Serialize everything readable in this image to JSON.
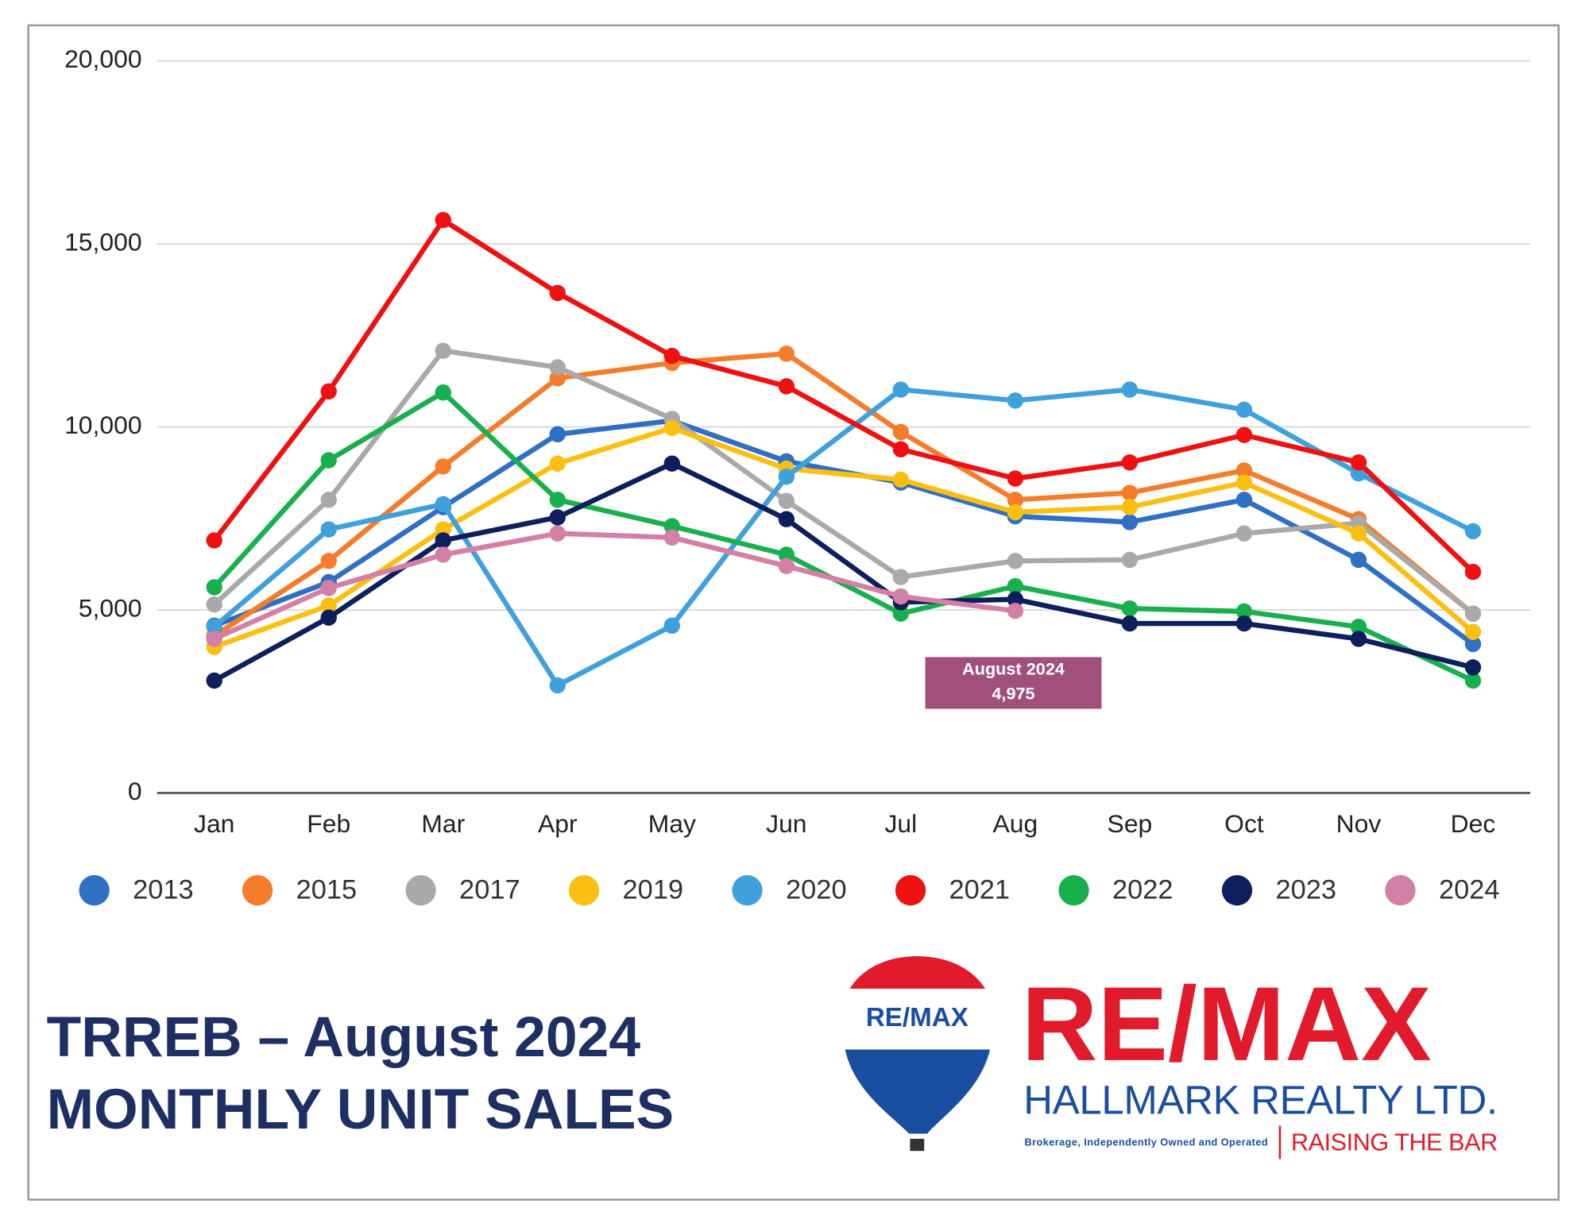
{
  "chart_data": {
    "type": "line",
    "title": "TRREB – August 2024",
    "subtitle": "MONTHLY UNIT SALES",
    "categories": [
      "Jan",
      "Feb",
      "Mar",
      "Apr",
      "May",
      "Jun",
      "Jul",
      "Aug",
      "Sep",
      "Oct",
      "Nov",
      "Dec"
    ],
    "ylim": [
      0,
      20000
    ],
    "yticks": [
      0,
      {
        "value": 5000,
        "label": "5,000"
      },
      {
        "value": 10000,
        "label": "10,000"
      },
      {
        "value": 15000,
        "label": "15,000"
      },
      {
        "value": 20000,
        "label": "20,000"
      }
    ],
    "grid": true,
    "legend": "bottom",
    "series": [
      {
        "name": "2013",
        "color": "#2f6fc4",
        "values": [
          4570,
          5760,
          7810,
          9800,
          10170,
          9060,
          8480,
          7560,
          7400,
          8010,
          6370,
          4070
        ]
      },
      {
        "name": "2015",
        "color": "#f57c2b",
        "values": [
          4290,
          6340,
          8920,
          11330,
          11750,
          12000,
          9860,
          8010,
          8200,
          8810,
          7480,
          4900
        ]
      },
      {
        "name": "2017",
        "color": "#a9a9a9",
        "values": [
          5150,
          8010,
          12080,
          11630,
          10220,
          7980,
          5900,
          6340,
          6370,
          7090,
          7370,
          4900
        ]
      },
      {
        "name": "2019",
        "color": "#fbbf12",
        "values": [
          3990,
          5120,
          7200,
          9000,
          9970,
          8860,
          8560,
          7670,
          7810,
          8480,
          7090,
          4400
        ]
      },
      {
        "name": "2020",
        "color": "#3fa0dc",
        "values": [
          4540,
          7200,
          7890,
          2940,
          4570,
          8640,
          11020,
          10720,
          11020,
          10470,
          8730,
          7150
        ]
      },
      {
        "name": "2021",
        "color": "#ee1111",
        "values": [
          6900,
          10970,
          15650,
          13660,
          11940,
          11110,
          9390,
          8590,
          9030,
          9780,
          9030,
          6040
        ]
      },
      {
        "name": "2022",
        "color": "#18b04c",
        "values": [
          5620,
          9090,
          10940,
          8010,
          7290,
          6510,
          4900,
          5650,
          5040,
          4960,
          4540,
          3070
        ]
      },
      {
        "name": "2023",
        "color": "#0d1f5c",
        "values": [
          3070,
          4790,
          6900,
          7530,
          9000,
          7480,
          5210,
          5290,
          4630,
          4630,
          4210,
          3430
        ]
      },
      {
        "name": "2024",
        "color": "#d47fa6",
        "values": [
          4210,
          5600,
          6510,
          7090,
          6980,
          6200,
          5370,
          4975,
          null,
          null,
          null,
          null
        ]
      }
    ],
    "annotation": {
      "lines": [
        "August 2024",
        "4,975"
      ],
      "color": "#a0507a"
    }
  },
  "logo": {
    "balloon_text": "RE/MAX",
    "brand": "RE/MAX",
    "company": "HALLMARK REALTY LTD.",
    "tagline": "Brokerage, Independently Owned and Operated",
    "slogan": "RAISING THE BAR"
  }
}
